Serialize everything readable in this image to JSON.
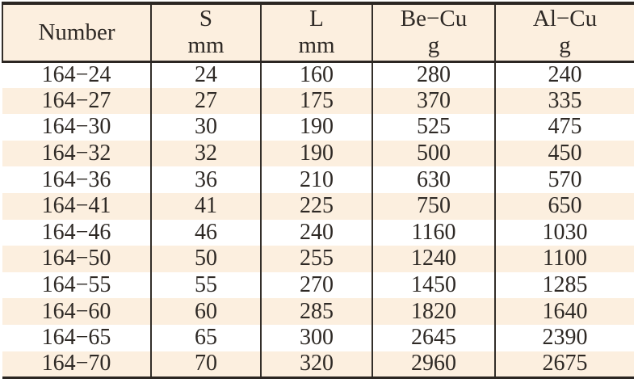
{
  "colors": {
    "row_alt_bg": "#fcefdf",
    "row_bg": "#ffffff",
    "rule_heavy": "#2b2622",
    "rule_light": "#332e29",
    "text": "#2e2925"
  },
  "header": {
    "number": [
      "Number"
    ],
    "s": [
      "S",
      "mm"
    ],
    "l": [
      "L",
      "mm"
    ],
    "becu": [
      "Be−Cu",
      "g"
    ],
    "alcu": [
      "Al−Cu",
      "g"
    ]
  },
  "column_ids": [
    "number",
    "s-mm",
    "l-mm",
    "be-cu-g",
    "al-cu-g"
  ],
  "rows": [
    [
      "164−24",
      "24",
      "160",
      "280",
      "240"
    ],
    [
      "164−27",
      "27",
      "175",
      "370",
      "335"
    ],
    [
      "164−30",
      "30",
      "190",
      "525",
      "475"
    ],
    [
      "164−32",
      "32",
      "190",
      "500",
      "450"
    ],
    [
      "164−36",
      "36",
      "210",
      "630",
      "570"
    ],
    [
      "164−41",
      "41",
      "225",
      "750",
      "650"
    ],
    [
      "164−46",
      "46",
      "240",
      "1160",
      "1030"
    ],
    [
      "164−50",
      "50",
      "255",
      "1240",
      "1100"
    ],
    [
      "164−55",
      "55",
      "270",
      "1450",
      "1285"
    ],
    [
      "164−60",
      "60",
      "285",
      "1820",
      "1640"
    ],
    [
      "164−65",
      "65",
      "300",
      "2645",
      "2390"
    ],
    [
      "164−70",
      "70",
      "320",
      "2960",
      "2675"
    ]
  ]
}
